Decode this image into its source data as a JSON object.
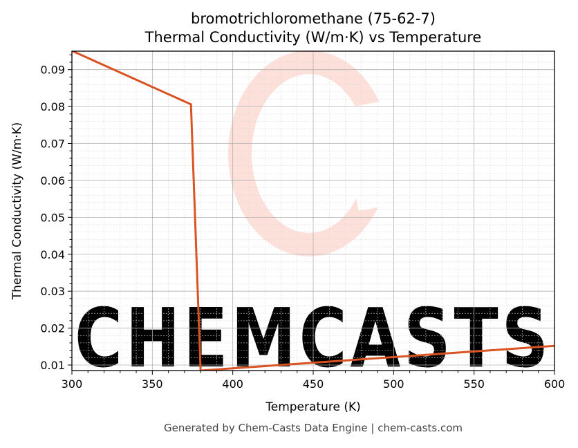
{
  "chart_data": {
    "type": "line",
    "title_line1": "bromotrichloromethane (75-62-7)",
    "title_line2": "Thermal Conductivity (W/m·K) vs Temperature",
    "xlabel": "Temperature (K)",
    "ylabel": "Thermal Conductivity (W/m·K)",
    "xlim": [
      300,
      600
    ],
    "ylim": [
      0.0085,
      0.095
    ],
    "x_ticks": [
      300,
      350,
      400,
      450,
      500,
      550,
      600
    ],
    "x_tick_labels": [
      "300",
      "350",
      "400",
      "450",
      "500",
      "550",
      "600"
    ],
    "y_ticks": [
      0.01,
      0.02,
      0.03,
      0.04,
      0.05,
      0.06,
      0.07,
      0.08,
      0.09
    ],
    "y_tick_labels": [
      "0.01",
      "0.02",
      "0.03",
      "0.04",
      "0.05",
      "0.06",
      "0.07",
      "0.08",
      "0.09"
    ],
    "grid": true,
    "series": [
      {
        "color": "#d95323",
        "x": [
          300,
          374,
          380,
          600
        ],
        "y": [
          0.0951,
          0.0806,
          0.0085,
          0.0152
        ]
      }
    ],
    "watermark_text": "CHEMCASTS",
    "watermark_color": "#fde0da"
  },
  "footer": "Generated by Chem-Casts Data Engine | chem-casts.com"
}
